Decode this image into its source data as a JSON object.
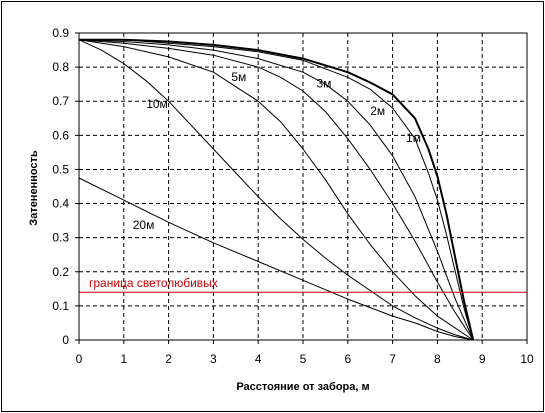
{
  "chart_data": {
    "type": "line",
    "xlabel": "Расстояние от забора, м",
    "ylabel": "Затененность",
    "xlim": [
      0,
      10
    ],
    "ylim": [
      0,
      0.9
    ],
    "xticks": [
      "0",
      "1",
      "2",
      "3",
      "4",
      "5",
      "6",
      "7",
      "8",
      "9",
      "10"
    ],
    "yticks": [
      "0",
      "0.1",
      "0.2",
      "0.3",
      "0.4",
      "0.5",
      "0.6",
      "0.7",
      "0.8",
      "0.9"
    ],
    "grid": true,
    "series": [
      {
        "name": "",
        "values": [
          [
            0,
            0.88
          ],
          [
            1,
            0.88
          ],
          [
            2,
            0.875
          ],
          [
            3,
            0.865
          ],
          [
            4,
            0.85
          ],
          [
            5,
            0.825
          ],
          [
            6,
            0.785
          ],
          [
            6.5,
            0.755
          ],
          [
            7,
            0.72
          ],
          [
            7.5,
            0.65
          ],
          [
            7.8,
            0.56
          ],
          [
            8,
            0.48
          ],
          [
            8.2,
            0.37
          ],
          [
            8.4,
            0.24
          ],
          [
            8.6,
            0.11
          ],
          [
            8.8,
            0
          ]
        ]
      },
      {
        "name": "1м",
        "values": [
          [
            0,
            0.88
          ],
          [
            1,
            0.88
          ],
          [
            2,
            0.87
          ],
          [
            3,
            0.86
          ],
          [
            4,
            0.845
          ],
          [
            5,
            0.82
          ],
          [
            6,
            0.77
          ],
          [
            6.5,
            0.735
          ],
          [
            7,
            0.68
          ],
          [
            7.5,
            0.59
          ],
          [
            7.8,
            0.49
          ],
          [
            8,
            0.41
          ],
          [
            8.2,
            0.31
          ],
          [
            8.4,
            0.2
          ],
          [
            8.6,
            0.09
          ],
          [
            8.8,
            0
          ]
        ]
      },
      {
        "name": "2м",
        "values": [
          [
            0,
            0.88
          ],
          [
            1,
            0.875
          ],
          [
            2,
            0.865
          ],
          [
            3,
            0.85
          ],
          [
            4,
            0.825
          ],
          [
            5,
            0.785
          ],
          [
            5.5,
            0.75
          ],
          [
            6,
            0.7
          ],
          [
            6.5,
            0.63
          ],
          [
            7,
            0.54
          ],
          [
            7.5,
            0.42
          ],
          [
            8,
            0.26
          ],
          [
            8.4,
            0.12
          ],
          [
            8.8,
            0
          ]
        ]
      },
      {
        "name": "3м",
        "values": [
          [
            0,
            0.88
          ],
          [
            1,
            0.87
          ],
          [
            2,
            0.855
          ],
          [
            3,
            0.835
          ],
          [
            4,
            0.8
          ],
          [
            4.5,
            0.77
          ],
          [
            5,
            0.73
          ],
          [
            5.5,
            0.67
          ],
          [
            6,
            0.59
          ],
          [
            6.5,
            0.5
          ],
          [
            7,
            0.4
          ],
          [
            7.5,
            0.29
          ],
          [
            8,
            0.17
          ],
          [
            8.4,
            0.08
          ],
          [
            8.8,
            0
          ]
        ]
      },
      {
        "name": "5м",
        "values": [
          [
            0,
            0.88
          ],
          [
            1,
            0.86
          ],
          [
            2,
            0.83
          ],
          [
            3,
            0.785
          ],
          [
            4,
            0.7
          ],
          [
            4.5,
            0.64
          ],
          [
            5,
            0.56
          ],
          [
            5.5,
            0.47
          ],
          [
            6,
            0.37
          ],
          [
            6.5,
            0.28
          ],
          [
            7,
            0.2
          ],
          [
            7.5,
            0.13
          ],
          [
            8,
            0.07
          ],
          [
            8.4,
            0.035
          ],
          [
            8.8,
            0
          ]
        ]
      },
      {
        "name": "10м",
        "values": [
          [
            0,
            0.88
          ],
          [
            0.5,
            0.85
          ],
          [
            1,
            0.81
          ],
          [
            1.5,
            0.76
          ],
          [
            2,
            0.7
          ],
          [
            2.5,
            0.63
          ],
          [
            3,
            0.56
          ],
          [
            3.5,
            0.49
          ],
          [
            4,
            0.42
          ],
          [
            4.5,
            0.355
          ],
          [
            5,
            0.295
          ],
          [
            5.5,
            0.24
          ],
          [
            6,
            0.19
          ],
          [
            6.5,
            0.145
          ],
          [
            7,
            0.1
          ],
          [
            7.5,
            0.065
          ],
          [
            8,
            0.035
          ],
          [
            8.4,
            0.015
          ],
          [
            8.8,
            0
          ]
        ]
      },
      {
        "name": "20м",
        "values": [
          [
            0,
            0.475
          ],
          [
            1,
            0.41
          ],
          [
            2,
            0.345
          ],
          [
            3,
            0.285
          ],
          [
            4,
            0.23
          ],
          [
            5,
            0.175
          ],
          [
            6,
            0.12
          ],
          [
            7,
            0.07
          ],
          [
            7.5,
            0.05
          ],
          [
            8,
            0.025
          ],
          [
            8.4,
            0.01
          ],
          [
            8.8,
            0
          ]
        ]
      }
    ],
    "annotations": [
      {
        "text": "граница светолюбивых",
        "y": 0.14,
        "color": "#cc0000"
      }
    ]
  }
}
